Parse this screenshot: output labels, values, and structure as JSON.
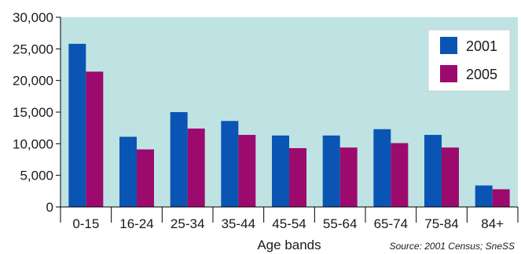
{
  "chart_data": {
    "type": "bar",
    "categories": [
      "0-15",
      "16-24",
      "25-34",
      "35-44",
      "45-54",
      "55-64",
      "65-74",
      "75-84",
      "84+"
    ],
    "series": [
      {
        "name": "2001",
        "values": [
          25800,
          11100,
          15000,
          13600,
          11300,
          11300,
          12300,
          11400,
          3400
        ],
        "color": "#0a55b4"
      },
      {
        "name": "2005",
        "values": [
          21400,
          9100,
          12400,
          11400,
          9300,
          9400,
          10100,
          9400,
          2800
        ],
        "color": "#9c0a6e"
      }
    ],
    "yticks": [
      "0",
      "5,000",
      "10,000",
      "15,000",
      "20,000",
      "25,000",
      "30,000"
    ],
    "ylim": [
      0,
      30000
    ],
    "xlabel": "Age bands",
    "ylabel": "",
    "legend": "top-right",
    "plot_background": "#bfe3e3",
    "grid": false,
    "source": "Source: 2001 Census; SneSS"
  }
}
